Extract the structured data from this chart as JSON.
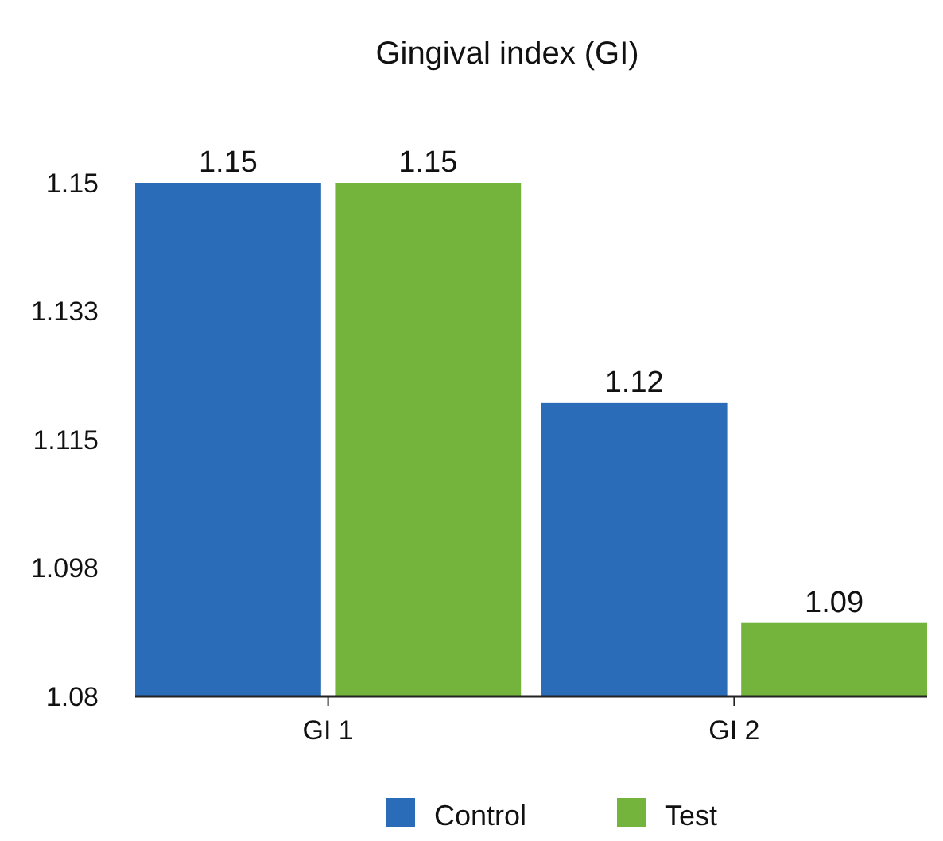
{
  "chart_data": {
    "type": "bar",
    "title": "Gingival index (GI)",
    "categories": [
      "GI 1",
      "GI 2"
    ],
    "series": [
      {
        "name": "Control",
        "color": "#2a6cb8",
        "values": [
          1.15,
          1.12
        ]
      },
      {
        "name": "Test",
        "color": "#74b43c",
        "values": [
          1.15,
          1.09
        ]
      }
    ],
    "ylim": [
      1.08,
      1.15
    ],
    "yticks": [
      1.08,
      {
        "value": 1.0975,
        "label": "1.098"
      },
      1.115,
      {
        "value": 1.1325,
        "label": "1.133"
      },
      1.15
    ],
    "data_labels": true,
    "grid": false,
    "legend": "bottom"
  }
}
